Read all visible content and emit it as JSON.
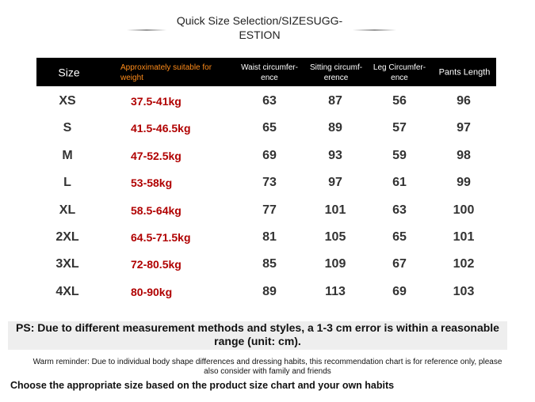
{
  "title": {
    "lines": [
      "Quick Size Selection/SIZESUGG-",
      "ESTION"
    ]
  },
  "table": {
    "header": [
      [
        "Size"
      ],
      [
        "Approximately suitable for",
        "weight"
      ],
      [
        "Waist circumfer-",
        "ence"
      ],
      [
        "Sitting circumf-",
        "erence"
      ],
      [
        "Leg Circumfer-",
        "ence"
      ],
      [
        "Pants Length"
      ]
    ],
    "rows": [
      [
        "XS",
        "37.5-41kg",
        63,
        87,
        56,
        96
      ],
      [
        "S",
        "41.5-46.5kg",
        65,
        89,
        57,
        97
      ],
      [
        "M",
        "47-52.5kg",
        69,
        93,
        59,
        98
      ],
      [
        "L",
        "53-58kg",
        73,
        97,
        61,
        99
      ],
      [
        "XL",
        "58.5-64kg",
        77,
        101,
        63,
        100
      ],
      [
        "2XL",
        "64.5-71.5kg",
        81,
        105,
        65,
        101
      ],
      [
        "3XL",
        "72-80.5kg",
        85,
        109,
        67,
        102
      ],
      [
        "4XL",
        "80-90kg",
        89,
        113,
        69,
        103
      ]
    ]
  },
  "notes": {
    "ps": [
      "PS: Due to different measurement methods and styles, a 1-3 cm error is within a reasonable",
      "range (unit: cm)."
    ],
    "reminder": [
      "Warm reminder: Due to individual body shape differences and dressing habits, this recommendation chart is for reference only, please",
      "also consider with family and friends"
    ],
    "choose": "Choose the appropriate size based on the product size chart and your own habits"
  }
}
